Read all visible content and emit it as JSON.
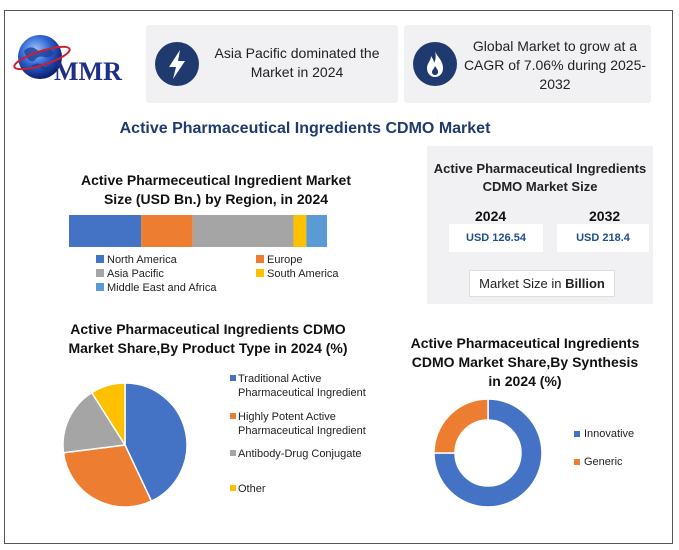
{
  "logo": {
    "text": "MMR",
    "icon": "globe-icon"
  },
  "highlights": [
    {
      "icon": "lightning-icon",
      "text": "Asia Pacific dominated the Market in 2024"
    },
    {
      "icon": "flame-icon",
      "text": "Global Market to grow at a CAGR of 7.06% during 2025-2032"
    }
  ],
  "main_title": "Active Pharmaceutical Ingredients CDMO Market",
  "market_size": {
    "title": "Active Pharmaceutical Ingredients CDMO Market Size",
    "year_a": "2024",
    "year_b": "2032",
    "value_a": "USD 126.54",
    "value_b": "USD 218.4",
    "unit_prefix": "Market Size in",
    "unit_bold": "Billion"
  },
  "colors": {
    "blue": "#4472c4",
    "orange": "#ed7d31",
    "gray": "#a5a5a5",
    "yellow": "#ffc000",
    "lightblue": "#5b9bd5",
    "navy": "#1f3a6e"
  },
  "chart_data": [
    {
      "type": "bar",
      "orientation": "horizontal-stacked",
      "title": "Active Pharmeceutical Ingredient Market Size (USD Bn.) by Region, in 2024",
      "categories": [
        "2024"
      ],
      "series": [
        {
          "name": "North America",
          "values": [
            28
          ]
        },
        {
          "name": "Europe",
          "values": [
            20
          ]
        },
        {
          "name": "Asia Pacific",
          "values": [
            39
          ]
        },
        {
          "name": "South America",
          "values": [
            5
          ]
        },
        {
          "name": "Middle East and Africa",
          "values": [
            8
          ]
        }
      ],
      "legend": "bottom"
    },
    {
      "type": "pie",
      "title": "Active Pharmaceutical Ingredients CDMO Market Share,By Product Type in 2024 (%)",
      "labels": [
        "Traditional Active Pharmaceutical Ingredient",
        "Highly Potent Active Pharmaceutical Ingredient",
        "Antibody-Drug Conjugate",
        "Other"
      ],
      "values": [
        43,
        30,
        18,
        9
      ],
      "legend": "right"
    },
    {
      "type": "pie",
      "variant": "donut",
      "title": "Active Pharmaceutical Ingredients CDMO Market Share,By Synthesis in 2024 (%)",
      "labels": [
        "Innovative",
        "Generic"
      ],
      "values": [
        75,
        25
      ],
      "legend": "right"
    }
  ]
}
